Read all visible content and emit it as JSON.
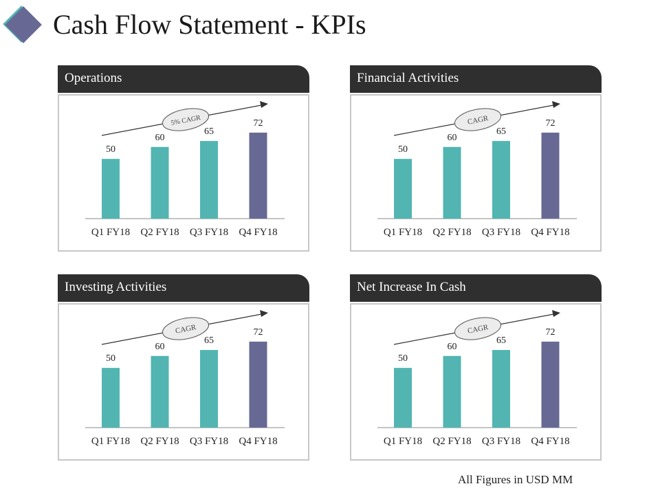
{
  "title": "Cash Flow Statement - KPIs",
  "footnote": "All Figures in USD MM",
  "colors": {
    "bar": "#52b5b2",
    "highlight_bar": "#676994",
    "header_bg": "#2f2f2f",
    "logo_back": "#52b5b2",
    "logo_front": "#676994"
  },
  "panels": [
    {
      "title": "Operations",
      "cagr_label": "5% CAGR"
    },
    {
      "title": "Financial Activities",
      "cagr_label": "CAGR"
    },
    {
      "title": "Investing Activities",
      "cagr_label": "CAGR"
    },
    {
      "title": "Net Increase In Cash",
      "cagr_label": "CAGR"
    }
  ],
  "chart_data": [
    {
      "type": "bar",
      "title": "Operations",
      "categories": [
        "Q1 FY18",
        "Q2 FY18",
        "Q3 FY18",
        "Q4 FY18"
      ],
      "values": [
        50,
        60,
        65,
        72
      ],
      "annotation": "5% CAGR",
      "highlight_index": 3,
      "ylim": [
        0,
        80
      ]
    },
    {
      "type": "bar",
      "title": "Financial Activities",
      "categories": [
        "Q1 FY18",
        "Q2 FY18",
        "Q3 FY18",
        "Q4 FY18"
      ],
      "values": [
        50,
        60,
        65,
        72
      ],
      "annotation": "CAGR",
      "highlight_index": 3,
      "ylim": [
        0,
        80
      ]
    },
    {
      "type": "bar",
      "title": "Investing Activities",
      "categories": [
        "Q1 FY18",
        "Q2 FY18",
        "Q3 FY18",
        "Q4 FY18"
      ],
      "values": [
        50,
        60,
        65,
        72
      ],
      "annotation": "CAGR",
      "highlight_index": 3,
      "ylim": [
        0,
        80
      ]
    },
    {
      "type": "bar",
      "title": "Net Increase In Cash",
      "categories": [
        "Q1 FY18",
        "Q2 FY18",
        "Q3 FY18",
        "Q4 FY18"
      ],
      "values": [
        50,
        60,
        65,
        72
      ],
      "annotation": "CAGR",
      "highlight_index": 3,
      "ylim": [
        0,
        80
      ]
    }
  ]
}
